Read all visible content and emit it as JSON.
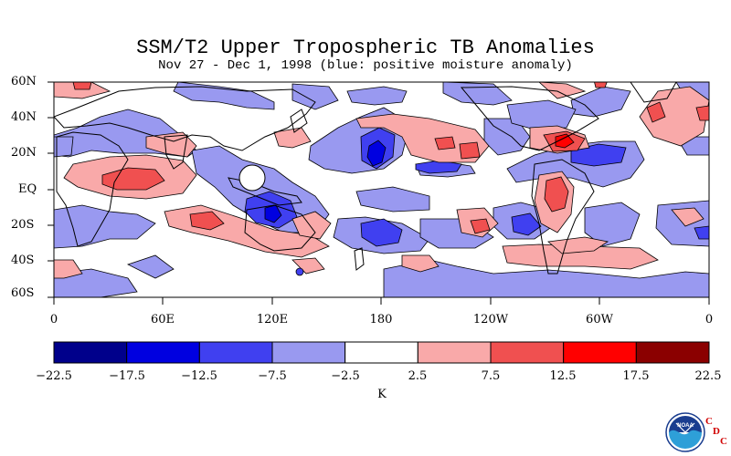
{
  "header": {
    "title": "SSM/T2 Upper Tropospheric TB Anomalies",
    "subtitle": "Nov 27 - Dec 1, 1998 (blue: positive moisture anomaly)"
  },
  "map": {
    "lat_labels": [
      "60N",
      "40N",
      "20N",
      "EQ",
      "20S",
      "40S",
      "60S"
    ],
    "lon_labels": [
      "0",
      "60E",
      "120E",
      "180",
      "120W",
      "60W",
      "0"
    ],
    "background": "#ffffff"
  },
  "colorbar": {
    "ticks": [
      "−22.5",
      "−17.5",
      "−12.5",
      "−7.5",
      "−2.5",
      "2.5",
      "7.5",
      "12.5",
      "17.5",
      "22.5"
    ],
    "colors": [
      "#00008b",
      "#0000e0",
      "#4040f0",
      "#9999f0",
      "#ffffff",
      "#f9a9a9",
      "#f05050",
      "#ff0000",
      "#8b0000"
    ],
    "units": "K"
  },
  "logo": {
    "name": "noaa-logo-icon",
    "text": "NOAA",
    "letters": [
      "C",
      "D",
      "C"
    ]
  }
}
